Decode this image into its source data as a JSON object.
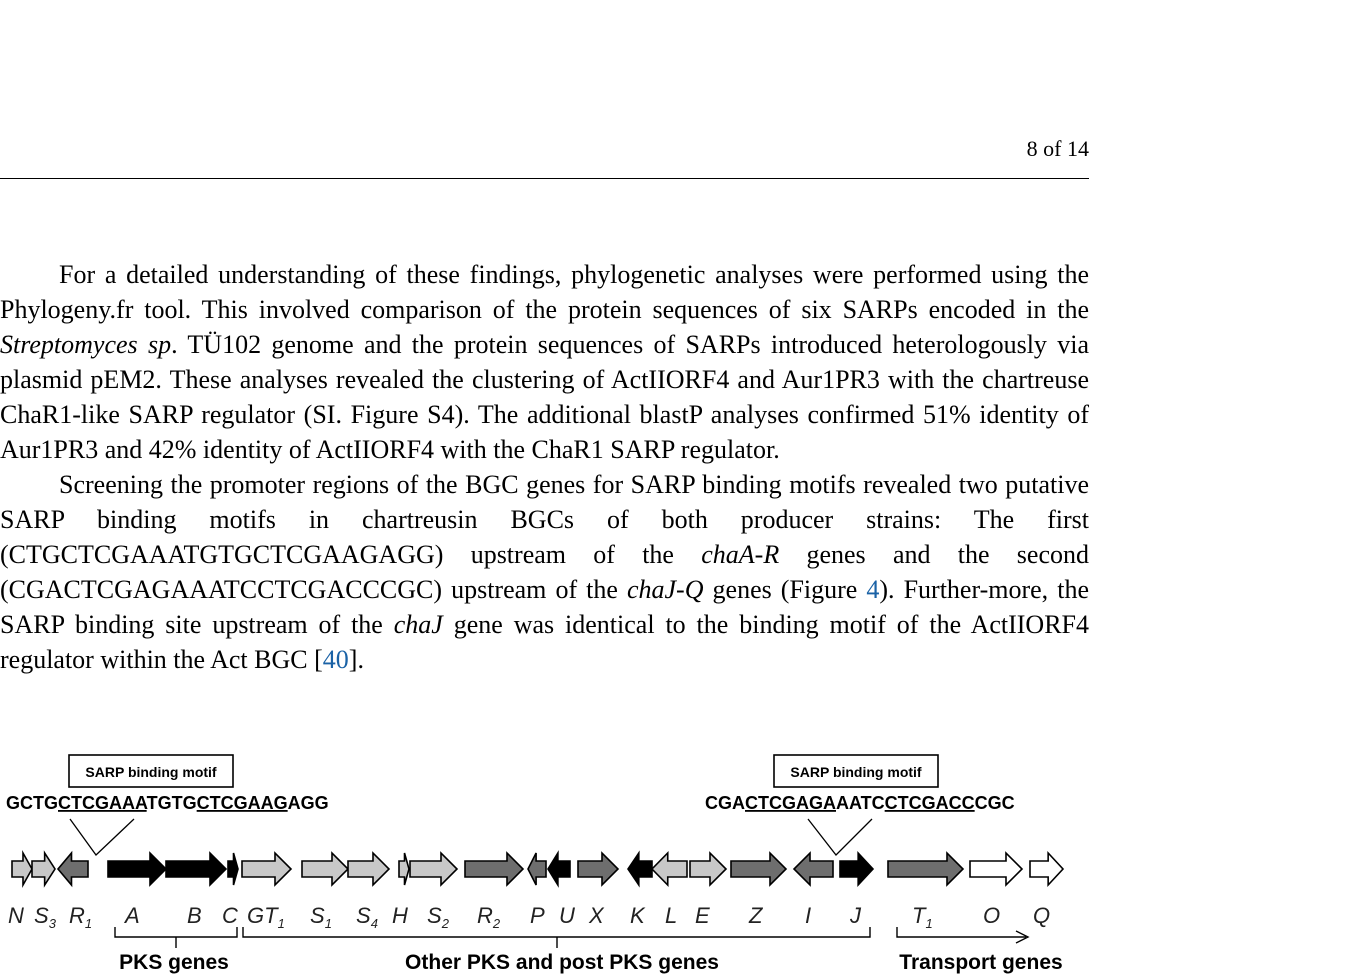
{
  "header": {
    "page_number": "8 of 14"
  },
  "paragraphs": [
    {
      "segments": [
        "For a detailed understanding of these findings, phylogenetic analyses were performed using the Phylogeny.fr tool.  This involved comparison of the protein sequences of six SARPs encoded in the ",
        "Streptomyces sp",
        ". TÜ102 genome and the protein sequences of SARPs introduced heterologously via plasmid pEM2. These analyses revealed the clustering of ActIIORF4 and Aur1PR3 with the chartreuse ChaR1-like SARP regulator (SI. Figure S4). The additional blastP analyses confirmed 51% identity of Aur1PR3 and 42% identity of ActIIORF4 with the ChaR1 SARP regulator."
      ]
    },
    {
      "segments": [
        "Screening the promoter regions of the BGC genes for SARP binding motifs revealed two putative SARP binding motifs in chartreusin BGCs of both producer strains: The first (CTGCTCGAAATGTGCTCGAAGAGG) upstream of the ",
        "chaA-R",
        " genes and the second (CGACTCGAGAAATCCTCGACCCGC) upstream of the ",
        "chaJ-Q",
        " genes (Figure ",
        "4",
        "). Further-more, the SARP binding site upstream of the ",
        "chaJ",
        " gene was identical to the binding motif of the ActIIORF4 regulator within the Act BGC [",
        "40",
        "]."
      ]
    }
  ],
  "figure": {
    "motif_box_left": "SARP binding motif",
    "motif_box_right": "SARP binding motif",
    "sequence_left": [
      "GCTG",
      "CTCGAAA",
      "TGTG",
      "CTCGAAG",
      "AGG"
    ],
    "sequence_right": [
      "CGA",
      "CTCGAGA",
      "AATC",
      "CTCGACC",
      "CGC"
    ],
    "gene_labels": [
      {
        "name": "N",
        "sub": ""
      },
      {
        "name": "S",
        "sub": "3"
      },
      {
        "name": "R",
        "sub": "1"
      },
      {
        "name": "A",
        "sub": ""
      },
      {
        "name": "B",
        "sub": ""
      },
      {
        "name": "C",
        "sub": ""
      },
      {
        "name": "GT",
        "sub": "1"
      },
      {
        "name": "S",
        "sub": "1"
      },
      {
        "name": "S",
        "sub": "4"
      },
      {
        "name": "H",
        "sub": ""
      },
      {
        "name": "S",
        "sub": "2"
      },
      {
        "name": "R",
        "sub": "2"
      },
      {
        "name": "P",
        "sub": ""
      },
      {
        "name": "U",
        "sub": ""
      },
      {
        "name": "X",
        "sub": ""
      },
      {
        "name": "K",
        "sub": ""
      },
      {
        "name": "L",
        "sub": ""
      },
      {
        "name": "E",
        "sub": ""
      },
      {
        "name": "Z",
        "sub": ""
      },
      {
        "name": "I",
        "sub": ""
      },
      {
        "name": "J",
        "sub": ""
      },
      {
        "name": "T",
        "sub": "1"
      },
      {
        "name": "O",
        "sub": ""
      },
      {
        "name": "Q",
        "sub": ""
      }
    ],
    "group_labels": {
      "pks": "PKS genes",
      "other": "Other PKS and post PKS genes",
      "transport": "Transport genes"
    },
    "colors": {
      "pks_core": "#000000",
      "mid_gray": "#6e6e6e",
      "light_gray": "#c8c8c8",
      "white": "#ffffff"
    }
  }
}
